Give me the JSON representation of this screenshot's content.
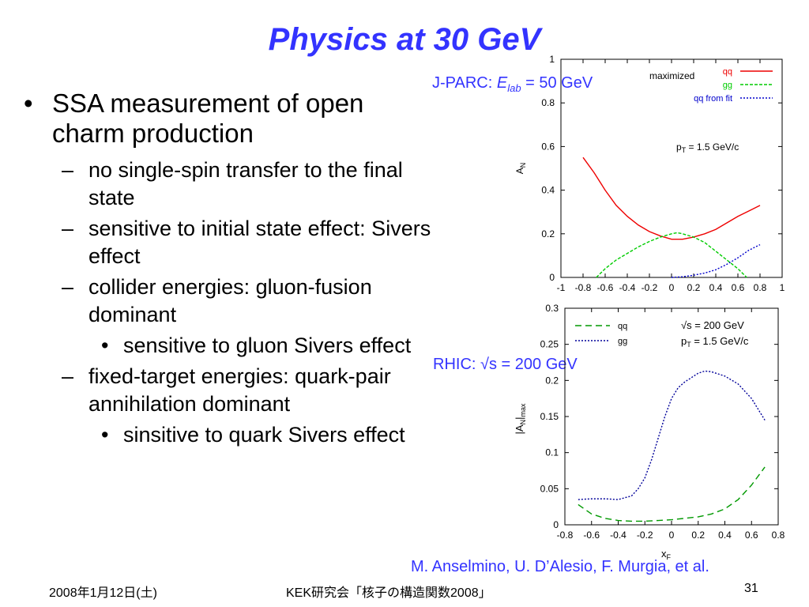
{
  "slide": {
    "title": "Physics at 30 GeV",
    "bullets": [
      {
        "level": 1,
        "marker": "•",
        "text": "SSA measurement of open charm production"
      },
      {
        "level": 2,
        "marker": "–",
        "text": "no single-spin transfer to the final state"
      },
      {
        "level": 2,
        "marker": "–",
        "text": "sensitive to initial state effect: Sivers effect"
      },
      {
        "level": 2,
        "marker": "–",
        "text": "collider energies: gluon-fusion dominant"
      },
      {
        "level": 3,
        "marker": "•",
        "text": "sensitive to gluon Sivers effect"
      },
      {
        "level": 2,
        "marker": "–",
        "text": "fixed-target energies: quark-pair annihilation dominant"
      },
      {
        "level": 3,
        "marker": "•",
        "text": "sinsitive to quark Sivers effect"
      }
    ],
    "jparc_label_prefix": "J-PARC: ",
    "jparc_label_E": "E",
    "jparc_label_sub": "lab",
    "jparc_label_suffix": " = 50 GeV",
    "rhic_label": "RHIC: √s = 200 GeV",
    "credit": "M. Anselmino, U. D’Alesio, F. Murgia, et al.",
    "footer": {
      "date": "2008年1月12日(土)",
      "event": "KEK研究会「核子の構造関数2008」",
      "page": "31"
    }
  },
  "chart_data": [
    {
      "type": "line",
      "ylabel": "A_N",
      "xlim": [
        -1,
        1
      ],
      "ylim": [
        0,
        1
      ],
      "xticks": [
        "-1",
        "-0.8",
        "-0.6",
        "-0.4",
        "-0.2",
        "0",
        "0.2",
        "0.4",
        "0.6",
        "0.8",
        "1"
      ],
      "yticks": [
        "0",
        "0.2",
        "0.4",
        "0.6",
        "0.8",
        "1"
      ],
      "annotations": [
        "maximized",
        "pT = 1.5 GeV/c"
      ],
      "series": [
        {
          "name": "qq",
          "color": "#ee0000",
          "dash": "",
          "x": [
            -0.8,
            -0.7,
            -0.6,
            -0.5,
            -0.4,
            -0.3,
            -0.2,
            -0.1,
            0,
            0.1,
            0.2,
            0.3,
            0.4,
            0.5,
            0.6,
            0.7,
            0.8
          ],
          "y": [
            0.55,
            0.48,
            0.4,
            0.33,
            0.28,
            0.24,
            0.21,
            0.19,
            0.175,
            0.175,
            0.185,
            0.2,
            0.22,
            0.25,
            0.28,
            0.305,
            0.33
          ]
        },
        {
          "name": "gg",
          "color": "#00cc00",
          "dash": "4,2",
          "x": [
            -0.68,
            -0.6,
            -0.5,
            -0.4,
            -0.3,
            -0.2,
            -0.1,
            0,
            0.05,
            0.1,
            0.2,
            0.3,
            0.4,
            0.5,
            0.6,
            0.68
          ],
          "y": [
            0,
            0.04,
            0.08,
            0.11,
            0.14,
            0.165,
            0.185,
            0.2,
            0.205,
            0.2,
            0.185,
            0.16,
            0.12,
            0.08,
            0.04,
            0
          ]
        },
        {
          "name": "qq from fit",
          "color": "#0000cc",
          "dash": "2,2",
          "x": [
            0,
            0.1,
            0.2,
            0.3,
            0.4,
            0.5,
            0.6,
            0.7,
            0.8
          ],
          "y": [
            0,
            0.003,
            0.01,
            0.02,
            0.035,
            0.06,
            0.09,
            0.125,
            0.15
          ]
        }
      ]
    },
    {
      "type": "line",
      "xlabel": "x_F",
      "ylabel": "|A_N|_max",
      "xlim": [
        -0.8,
        0.8
      ],
      "ylim": [
        0,
        0.3
      ],
      "xticks": [
        "-0.8",
        "-0.6",
        "-0.4",
        "-0.2",
        "0",
        "0.2",
        "0.4",
        "0.6",
        "0.8"
      ],
      "yticks": [
        "0",
        "0.05",
        "0.1",
        "0.15",
        "0.2",
        "0.25",
        "0.3"
      ],
      "annotations": [
        "√s = 200 GeV",
        "pT = 1.5 GeV/c"
      ],
      "series": [
        {
          "name": "qq",
          "color": "#009900",
          "dash": "8,5",
          "x": [
            -0.7,
            -0.6,
            -0.5,
            -0.4,
            -0.3,
            -0.2,
            -0.1,
            0,
            0.1,
            0.2,
            0.3,
            0.4,
            0.5,
            0.6,
            0.7
          ],
          "y": [
            0.028,
            0.015,
            0.009,
            0.006,
            0.005,
            0.005,
            0.006,
            0.007,
            0.009,
            0.011,
            0.015,
            0.022,
            0.035,
            0.055,
            0.08
          ]
        },
        {
          "name": "gg",
          "color": "#000099",
          "dash": "2,2",
          "x": [
            -0.7,
            -0.6,
            -0.5,
            -0.4,
            -0.3,
            -0.25,
            -0.2,
            -0.15,
            -0.1,
            -0.05,
            0,
            0.05,
            0.1,
            0.15,
            0.2,
            0.25,
            0.3,
            0.4,
            0.5,
            0.6,
            0.7
          ],
          "y": [
            0.035,
            0.036,
            0.036,
            0.035,
            0.04,
            0.05,
            0.065,
            0.09,
            0.12,
            0.15,
            0.175,
            0.19,
            0.198,
            0.204,
            0.21,
            0.213,
            0.212,
            0.206,
            0.195,
            0.175,
            0.145
          ]
        }
      ]
    }
  ]
}
